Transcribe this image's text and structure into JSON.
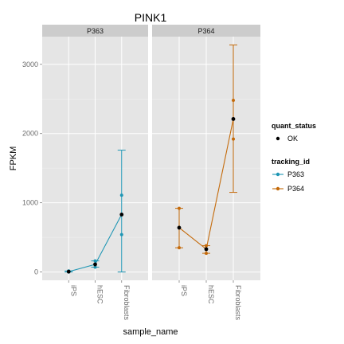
{
  "chart_data": {
    "type": "line",
    "title": "PINK1",
    "xlabel": "sample_name",
    "ylabel": "FPKM",
    "categories": [
      "iPS",
      "hESC",
      "Fibroblasts"
    ],
    "ylim": [
      -120,
      3400
    ],
    "yticks": [
      0,
      1000,
      2000,
      3000
    ],
    "grid": true,
    "panels": [
      {
        "label": "P363",
        "series_name": "P363",
        "color": "#1f96b4",
        "values": [
          5,
          110,
          830
        ],
        "lower": [
          0,
          70,
          0
        ],
        "upper": [
          15,
          160,
          1760
        ],
        "inner_low": [
          null,
          null,
          540
        ],
        "inner_high": [
          null,
          null,
          1110
        ]
      },
      {
        "label": "P364",
        "series_name": "P364",
        "color": "#c46a0a",
        "values": [
          640,
          330,
          2210
        ],
        "lower": [
          350,
          270,
          1150
        ],
        "upper": [
          920,
          380,
          3280
        ],
        "inner_low": [
          null,
          null,
          1920
        ],
        "inner_high": [
          null,
          null,
          2480
        ]
      }
    ],
    "legend": {
      "placement": "right",
      "quant_status": {
        "title": "quant_status",
        "items": [
          "OK"
        ]
      },
      "tracking_id": {
        "title": "tracking_id",
        "items": [
          "P363",
          "P364"
        ]
      }
    }
  }
}
